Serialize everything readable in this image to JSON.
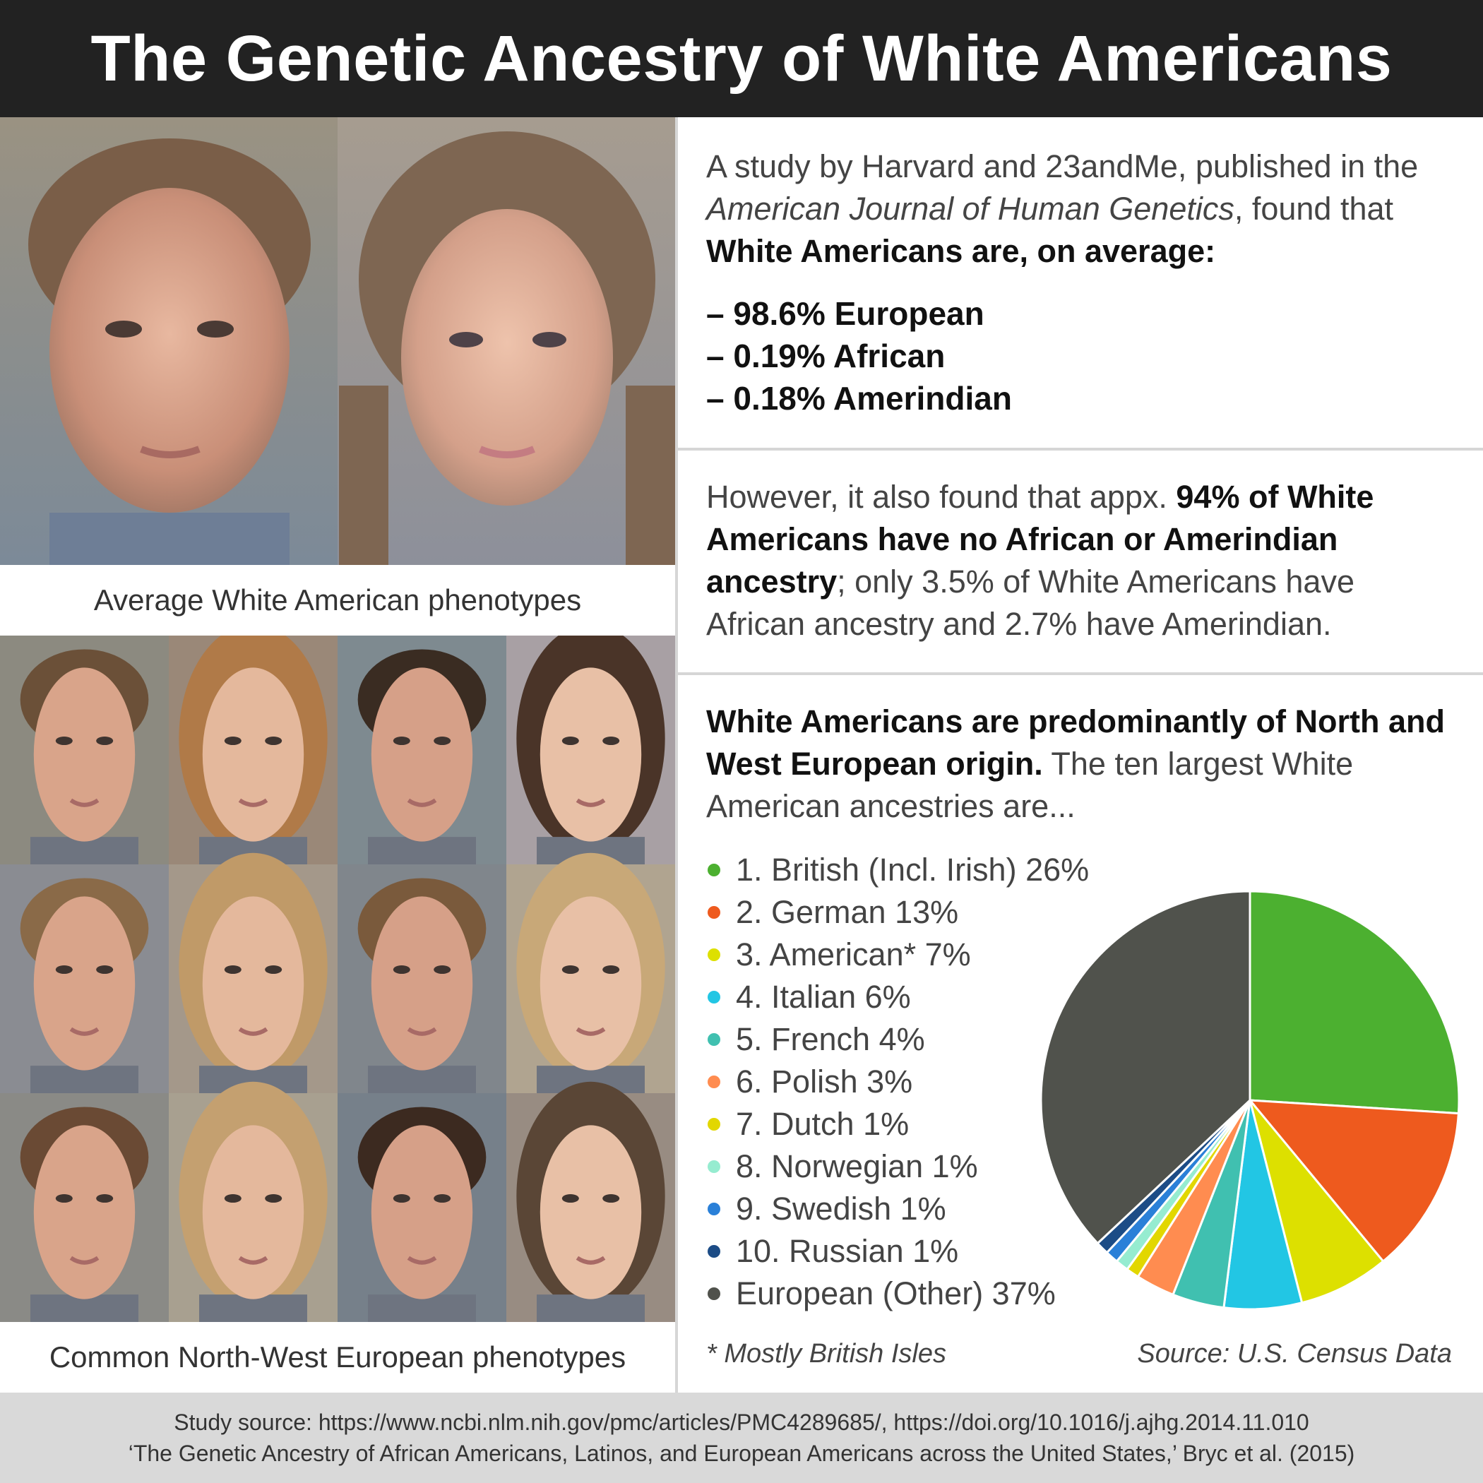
{
  "title": "The Genetic Ancestry of White Americans",
  "captions": {
    "average": "Average White American phenotypes",
    "common": "Common North-West European phenotypes"
  },
  "study": {
    "intro_1": "A study by Harvard and 23andMe, published in the ",
    "journal": "American Journal of Human Genetics",
    "intro_2": ", found that ",
    "intro_bold": "White Americans are, on average:",
    "items": [
      "– 98.6% European",
      "– 0.19% African",
      "– 0.18% Amerindian"
    ]
  },
  "however": {
    "text_1": "However, it also found that appx. ",
    "bold": "94% of White Americans have no African or Amerindian ancestry",
    "text_2": "; only 3.5% of White Americans have African ancestry and 2.7% have Amerindian."
  },
  "origin": {
    "bold": "White Americans are predominantly of North and West European origin.",
    "text": " The ten largest White American ancestries are..."
  },
  "chart_data": {
    "type": "pie",
    "categories": [
      "1. British (Incl. Irish) 26%",
      "2. German 13%",
      "3. American* 7%",
      "4. Italian 6%",
      "5. French 4%",
      "6. Polish 3%",
      "7. Dutch 1%",
      "8. Norwegian 1%",
      "9. Swedish 1%",
      "10. Russian 1%",
      "European (Other) 37%"
    ],
    "values": [
      26,
      13,
      7,
      6,
      4,
      3,
      1,
      1,
      1,
      1,
      37
    ],
    "colors": [
      "#4cb030",
      "#ee5a1e",
      "#dde000",
      "#22c6e4",
      "#40c0b0",
      "#ff8c50",
      "#e2d700",
      "#96ecd0",
      "#2a80d8",
      "#1c4c86",
      "#50524c"
    ],
    "legend_position": "left"
  },
  "footnote": "* Mostly British Isles",
  "source": "Source: U.S. Census Data",
  "footer": {
    "line1": "Study source: https://www.ncbi.nlm.nih.gov/pmc/articles/PMC4289685/, https://doi.org/10.1016/j.ajhg.2014.11.010",
    "line2": "‘The Genetic Ancestry of African Americans, Latinos, and European Americans across the United States,’ Bryc et al. (2015)"
  }
}
